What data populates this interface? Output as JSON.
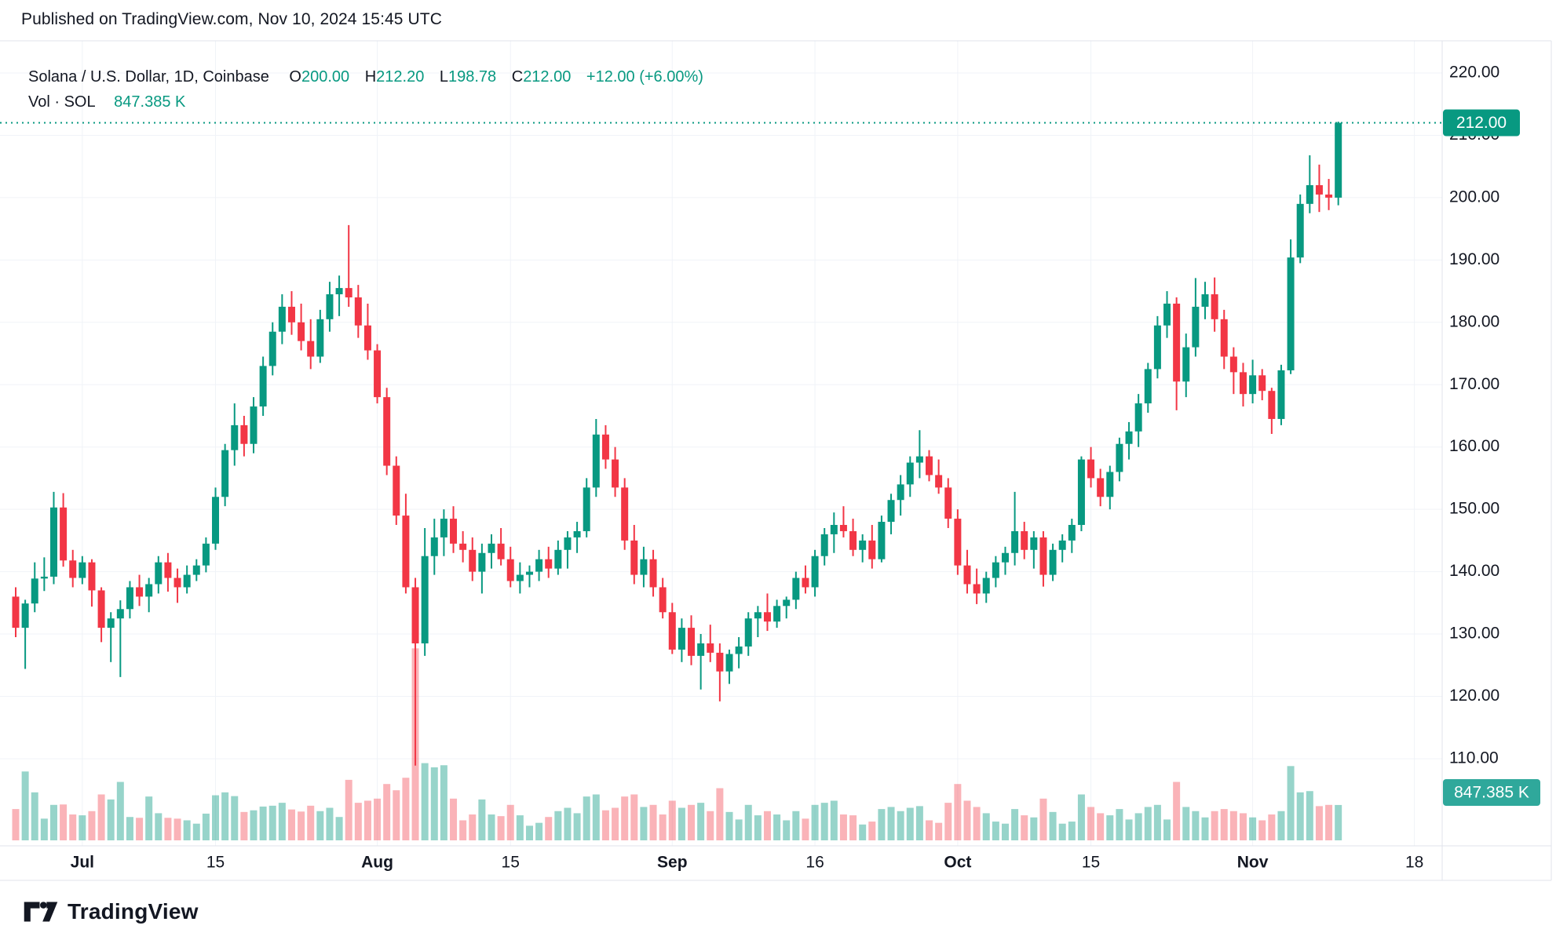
{
  "title": "Published on TradingView.com, Nov 10, 2024 15:45 UTC",
  "legend": {
    "symbol": "Solana / U.S. Dollar, 1D, Coinbase",
    "o_label": "O",
    "o": "200.00",
    "h_label": "H",
    "h": "212.20",
    "l_label": "L",
    "l": "198.78",
    "c_label": "C",
    "c": "212.00",
    "change": "+12.00 (+6.00%)",
    "vol_label": "Vol · SOL",
    "vol": "847.385 K"
  },
  "footer": {
    "brand": "TradingView"
  },
  "axis": {
    "price_badge": "212.00",
    "volume_badge": "847.385 K",
    "price_ticks": [
      "220.00",
      "210.00",
      "200.00",
      "190.00",
      "180.00",
      "170.00",
      "160.00",
      "150.00",
      "140.00",
      "130.00",
      "120.00",
      "110.00"
    ],
    "time_ticks": [
      {
        "index": 7,
        "label": "Jul",
        "major": true
      },
      {
        "index": 21,
        "label": "15",
        "major": false
      },
      {
        "index": 38,
        "label": "Aug",
        "major": true
      },
      {
        "index": 52,
        "label": "15",
        "major": false
      },
      {
        "index": 69,
        "label": "Sep",
        "major": true
      },
      {
        "index": 84,
        "label": "16",
        "major": false
      },
      {
        "index": 99,
        "label": "Oct",
        "major": true
      },
      {
        "index": 113,
        "label": "15",
        "major": false
      },
      {
        "index": 130,
        "label": "Nov",
        "major": true
      },
      {
        "index": 147,
        "label": "18",
        "major": false
      }
    ]
  },
  "colors": {
    "up": "#089981",
    "down": "#f23645",
    "vol_up": "rgba(8,153,129,0.42)",
    "vol_down": "rgba(242,54,69,0.38)",
    "grid": "#f0f3f8",
    "border": "#e0e3eb",
    "text": "#131722",
    "badge_price_bg": "#089981",
    "badge_vol_bg": "#2fa89b",
    "dotted_line": "#089981",
    "badge_text": "#ffffff"
  },
  "chart_data": {
    "type": "candlestick",
    "title": "Solana / U.S. Dollar, 1D, Coinbase",
    "symbol": "SOL/USD",
    "interval": "1D",
    "exchange": "Coinbase",
    "last_price": 212.0,
    "last_volume_k": 847.385,
    "price_axis": {
      "min_label": 110,
      "max_label": 220,
      "step": 10
    },
    "volume_unit": "K",
    "fields": [
      "date",
      "open",
      "high",
      "low",
      "close",
      "volume_k"
    ],
    "candles": [
      [
        "Jun 24",
        136,
        137.5,
        129.5,
        131,
        750
      ],
      [
        "Jun 25",
        131,
        135.5,
        124.4,
        134.9,
        1650
      ],
      [
        "Jun 26",
        134.9,
        141.5,
        133.5,
        138.9,
        1150
      ],
      [
        "Jun 27",
        138.9,
        142.3,
        136.9,
        139.2,
        520
      ],
      [
        "Jun 28",
        139.2,
        152.8,
        138,
        150.3,
        850
      ],
      [
        "Jun 29",
        150.3,
        152.6,
        140.8,
        141.8,
        860
      ],
      [
        "Jun 30",
        141.8,
        143.5,
        137.5,
        139,
        620
      ],
      [
        "Jul 1",
        139,
        142.5,
        138,
        141.5,
        600
      ],
      [
        "Jul 2",
        141.5,
        142,
        134.4,
        137,
        700
      ],
      [
        "Jul 3",
        137,
        137.5,
        128.7,
        131,
        1100
      ],
      [
        "Jul 4",
        131,
        133.5,
        125.5,
        132.5,
        980
      ],
      [
        "Jul 5",
        132.5,
        135.4,
        123.1,
        134,
        1400
      ],
      [
        "Jul 6",
        134,
        138.5,
        132.5,
        137.5,
        560
      ],
      [
        "Jul 7",
        137.5,
        139.5,
        134.5,
        136,
        540
      ],
      [
        "Jul 8",
        136,
        139,
        133.5,
        138,
        1050
      ],
      [
        "Jul 9",
        138,
        142.5,
        136.5,
        141.5,
        650
      ],
      [
        "Jul 10",
        141.5,
        143,
        136.8,
        139,
        540
      ],
      [
        "Jul 11",
        139,
        140.5,
        135,
        137.5,
        520
      ],
      [
        "Jul 12",
        137.5,
        141,
        136.5,
        139.5,
        480
      ],
      [
        "Jul 13",
        139.5,
        142,
        138.5,
        141,
        400
      ],
      [
        "Jul 14",
        141,
        145.5,
        139.9,
        144.5,
        640
      ],
      [
        "Jul 15",
        144.5,
        153.5,
        143.5,
        152,
        1080
      ],
      [
        "Jul 16",
        152,
        160.5,
        150.5,
        159.5,
        1150
      ],
      [
        "Jul 17",
        159.5,
        167,
        157,
        163.5,
        1060
      ],
      [
        "Jul 18",
        163.5,
        165,
        158.5,
        160.5,
        680
      ],
      [
        "Jul 19",
        160.5,
        168,
        159,
        166.5,
        720
      ],
      [
        "Jul 20",
        166.5,
        174.5,
        165,
        173,
        810
      ],
      [
        "Jul 21",
        173,
        180,
        171.5,
        178.5,
        830
      ],
      [
        "Jul 22",
        178.5,
        184.5,
        176.5,
        182.5,
        900
      ],
      [
        "Jul 23",
        182.5,
        185,
        178,
        180,
        740
      ],
      [
        "Jul 24",
        180,
        183,
        175.5,
        177,
        690
      ],
      [
        "Jul 25",
        177,
        180.5,
        172.5,
        174.5,
        830
      ],
      [
        "Jul 26",
        174.5,
        182,
        173.5,
        180.5,
        700
      ],
      [
        "Jul 27",
        180.5,
        186.5,
        178.5,
        184.5,
        780
      ],
      [
        "Jul 28",
        184.5,
        187.5,
        181,
        185.5,
        560
      ],
      [
        "Jul 29",
        185.5,
        195.6,
        182.5,
        184,
        1450
      ],
      [
        "Jul 30",
        184,
        186,
        177.5,
        179.5,
        900
      ],
      [
        "Jul 31",
        179.5,
        183,
        174,
        175.5,
        950
      ],
      [
        "Aug 1",
        175.5,
        176.5,
        167,
        168,
        1000
      ],
      [
        "Aug 2",
        168,
        169.5,
        155.5,
        157,
        1350
      ],
      [
        "Aug 3",
        157,
        158.5,
        147.5,
        149,
        1200
      ],
      [
        "Aug 4",
        149,
        152.5,
        136.5,
        137.5,
        1500
      ],
      [
        "Aug 5",
        137.5,
        139,
        108.9,
        128.5,
        4600
      ],
      [
        "Aug 6",
        128.5,
        147,
        126.5,
        142.5,
        1850
      ],
      [
        "Aug 7",
        142.5,
        148.5,
        139.5,
        145.5,
        1750
      ],
      [
        "Aug 8",
        145.5,
        150,
        142.5,
        148.5,
        1800
      ],
      [
        "Aug 9",
        148.5,
        150.5,
        143,
        144.5,
        1000
      ],
      [
        "Aug 10",
        144.5,
        146.5,
        141.5,
        143.5,
        480
      ],
      [
        "Aug 11",
        143.5,
        145.5,
        138.5,
        140,
        620
      ],
      [
        "Aug 12",
        140,
        144.5,
        136.5,
        143,
        980
      ],
      [
        "Aug 13",
        143,
        146,
        140.5,
        144.5,
        620
      ],
      [
        "Aug 14",
        144.5,
        147,
        141,
        142,
        580
      ],
      [
        "Aug 15",
        142,
        144,
        137.5,
        138.5,
        850
      ],
      [
        "Aug 16",
        138.5,
        141.5,
        136.5,
        139.5,
        600
      ],
      [
        "Aug 17",
        139.5,
        141,
        137.5,
        140,
        350
      ],
      [
        "Aug 18",
        140,
        143.5,
        138.5,
        142,
        420
      ],
      [
        "Aug 19",
        142,
        144,
        139,
        140.5,
        560
      ],
      [
        "Aug 20",
        140.5,
        145,
        139.5,
        143.5,
        700
      ],
      [
        "Aug 21",
        143.5,
        146.5,
        140.5,
        145.5,
        780
      ],
      [
        "Aug 22",
        145.5,
        148,
        143,
        146.5,
        650
      ],
      [
        "Aug 23",
        146.5,
        155,
        145.5,
        153.5,
        1050
      ],
      [
        "Aug 24",
        153.5,
        164.5,
        152,
        162,
        1100
      ],
      [
        "Aug 25",
        162,
        163.5,
        156.5,
        158,
        720
      ],
      [
        "Aug 26",
        158,
        160,
        152,
        153.5,
        780
      ],
      [
        "Aug 27",
        153.5,
        155,
        143.5,
        145,
        1050
      ],
      [
        "Aug 28",
        145,
        147.5,
        138,
        139.5,
        1100
      ],
      [
        "Aug 29",
        139.5,
        144,
        137.5,
        142,
        800
      ],
      [
        "Aug 30",
        142,
        143.5,
        136,
        137.5,
        850
      ],
      [
        "Aug 31",
        137.5,
        139,
        132.5,
        133.5,
        620
      ],
      [
        "Sep 1",
        133.5,
        135,
        126.8,
        127.5,
        950
      ],
      [
        "Sep 2",
        127.5,
        132.5,
        125.5,
        131,
        780
      ],
      [
        "Sep 3",
        131,
        133,
        125,
        126.5,
        850
      ],
      [
        "Sep 4",
        126.5,
        130,
        121.1,
        128.5,
        900
      ],
      [
        "Sep 5",
        128.5,
        131.5,
        125.5,
        127,
        700
      ],
      [
        "Sep 6",
        127,
        128.5,
        119.2,
        124,
        1250
      ],
      [
        "Sep 7",
        124,
        127.5,
        122,
        126.8,
        680
      ],
      [
        "Sep 8",
        126.8,
        129.5,
        124.5,
        128,
        500
      ],
      [
        "Sep 9",
        128,
        133.5,
        126.5,
        132.5,
        850
      ],
      [
        "Sep 10",
        132.5,
        134.5,
        129.5,
        133.5,
        600
      ],
      [
        "Sep 11",
        133.5,
        136.5,
        130.5,
        132,
        700
      ],
      [
        "Sep 12",
        132,
        135.5,
        131,
        134.5,
        620
      ],
      [
        "Sep 13",
        134.5,
        136,
        132.5,
        135.5,
        480
      ],
      [
        "Sep 14",
        135.5,
        140,
        134,
        139,
        700
      ],
      [
        "Sep 15",
        139,
        141,
        136.5,
        137.5,
        520
      ],
      [
        "Sep 16",
        137.5,
        143.5,
        136,
        142.5,
        850
      ],
      [
        "Sep 17",
        142.5,
        147,
        141,
        146,
        900
      ],
      [
        "Sep 18",
        146,
        149.5,
        143,
        147.5,
        950
      ],
      [
        "Sep 19",
        147.5,
        150.5,
        145.5,
        146.5,
        620
      ],
      [
        "Sep 20",
        146.5,
        148.5,
        142.5,
        143.5,
        600
      ],
      [
        "Sep 21",
        143.5,
        146,
        141.5,
        145,
        380
      ],
      [
        "Sep 22",
        145,
        147.5,
        140.5,
        142,
        450
      ],
      [
        "Sep 23",
        142,
        149,
        141.5,
        148,
        750
      ],
      [
        "Sep 24",
        148,
        152.5,
        146,
        151.5,
        800
      ],
      [
        "Sep 25",
        151.5,
        155.5,
        149,
        154,
        700
      ],
      [
        "Sep 26",
        154,
        158.5,
        152,
        157.5,
        780
      ],
      [
        "Sep 27",
        157.5,
        162.7,
        155,
        158.5,
        820
      ],
      [
        "Sep 28",
        158.5,
        159.5,
        154.5,
        155.5,
        480
      ],
      [
        "Sep 29",
        155.5,
        158,
        152.5,
        153.5,
        420
      ],
      [
        "Sep 30",
        153.5,
        155,
        147,
        148.5,
        900
      ],
      [
        "Oct 1",
        148.5,
        150,
        139.5,
        141,
        1350
      ],
      [
        "Oct 2",
        141,
        143.5,
        136.5,
        138,
        950
      ],
      [
        "Oct 3",
        138,
        140.5,
        134.8,
        136.5,
        800
      ],
      [
        "Oct 4",
        136.5,
        140,
        135,
        139,
        650
      ],
      [
        "Oct 5",
        139,
        142.5,
        137.5,
        141.5,
        450
      ],
      [
        "Oct 6",
        141.5,
        144,
        139.5,
        143,
        400
      ],
      [
        "Oct 7",
        143,
        152.8,
        141,
        146.5,
        750
      ],
      [
        "Oct 8",
        146.5,
        148,
        142,
        143.5,
        600
      ],
      [
        "Oct 9",
        143.5,
        146.5,
        140.5,
        145.5,
        550
      ],
      [
        "Oct 10",
        145.5,
        146.5,
        137.6,
        139.5,
        1000
      ],
      [
        "Oct 11",
        139.5,
        144.5,
        138.5,
        143.5,
        680
      ],
      [
        "Oct 12",
        143.5,
        146,
        141.5,
        145,
        400
      ],
      [
        "Oct 13",
        145,
        148.5,
        143,
        147.5,
        450
      ],
      [
        "Oct 14",
        147.5,
        158.5,
        146.5,
        158,
        1100
      ],
      [
        "Oct 15",
        158,
        160,
        153.5,
        155,
        800
      ],
      [
        "Oct 16",
        155,
        156.5,
        150.5,
        152,
        650
      ],
      [
        "Oct 17",
        152,
        157,
        150,
        156,
        600
      ],
      [
        "Oct 18",
        156,
        161.5,
        154.5,
        160.5,
        750
      ],
      [
        "Oct 19",
        160.5,
        164,
        158,
        162.5,
        500
      ],
      [
        "Oct 20",
        162.5,
        168.5,
        160,
        167,
        650
      ],
      [
        "Oct 21",
        167,
        173.5,
        165.5,
        172.5,
        800
      ],
      [
        "Oct 22",
        172.5,
        181,
        171,
        179.5,
        850
      ],
      [
        "Oct 23",
        179.5,
        185,
        177.5,
        183,
        500
      ],
      [
        "Oct 24",
        183,
        184,
        165.9,
        170.5,
        1400
      ],
      [
        "Oct 25",
        170.5,
        178.2,
        168,
        176,
        800
      ],
      [
        "Oct 26",
        176,
        187.1,
        174.5,
        182.5,
        700
      ],
      [
        "Oct 27",
        182.5,
        186.5,
        180.5,
        184.5,
        550
      ],
      [
        "Oct 28",
        184.5,
        187.2,
        178.5,
        180.5,
        700
      ],
      [
        "Oct 29",
        180.5,
        182,
        172.5,
        174.5,
        750
      ],
      [
        "Oct 30",
        174.5,
        176,
        168.5,
        172,
        700
      ],
      [
        "Oct 31",
        172,
        173.5,
        166.5,
        168.5,
        650
      ],
      [
        "Nov 1",
        168.5,
        174,
        167,
        171.5,
        550
      ],
      [
        "Nov 2",
        171.5,
        172.5,
        167.5,
        169,
        480
      ],
      [
        "Nov 3",
        169,
        169.5,
        162.1,
        164.5,
        620
      ],
      [
        "Nov 4",
        164.5,
        173.2,
        163.5,
        172.3,
        700
      ],
      [
        "Nov 5",
        172.3,
        193.3,
        171.7,
        190.4,
        1780
      ],
      [
        "Nov 6",
        190.4,
        200.5,
        189.5,
        199,
        1150
      ],
      [
        "Nov 7",
        199,
        206.8,
        197.5,
        202,
        1180
      ],
      [
        "Nov 8",
        202,
        205.3,
        197.7,
        200.5,
        820
      ],
      [
        "Nov 9",
        200.5,
        203,
        198,
        200,
        850
      ],
      [
        "Nov 10",
        200,
        212.2,
        198.78,
        212,
        847.385
      ]
    ]
  }
}
